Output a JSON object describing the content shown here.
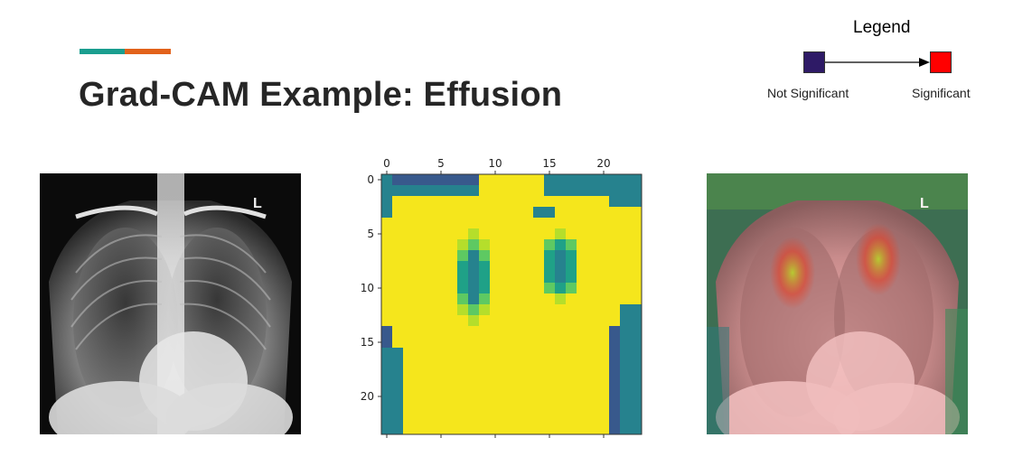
{
  "slide": {
    "title": "Grad-CAM Example: Effusion",
    "accent_colors": [
      "#1a9e8f",
      "#e2621b"
    ]
  },
  "legend": {
    "title": "Legend",
    "low_label": "Not Significant",
    "high_label": "Significant",
    "low_color": "#2e1a66",
    "high_color": "#ff0000"
  },
  "panels": {
    "original": {
      "alt": "chest-xray"
    },
    "heatmap": {
      "x_ticks": [
        "0",
        "5",
        "10",
        "15",
        "20"
      ],
      "y_ticks": [
        "0",
        "5",
        "10",
        "15",
        "20"
      ],
      "grid_size": 24,
      "colormap": [
        "#3b1e70",
        "#38598c",
        "#26828e",
        "#1fa187",
        "#5ec962",
        "#b5de2b",
        "#f5e61c"
      ]
    },
    "overlay": {
      "alt": "gradcam-overlay"
    }
  }
}
